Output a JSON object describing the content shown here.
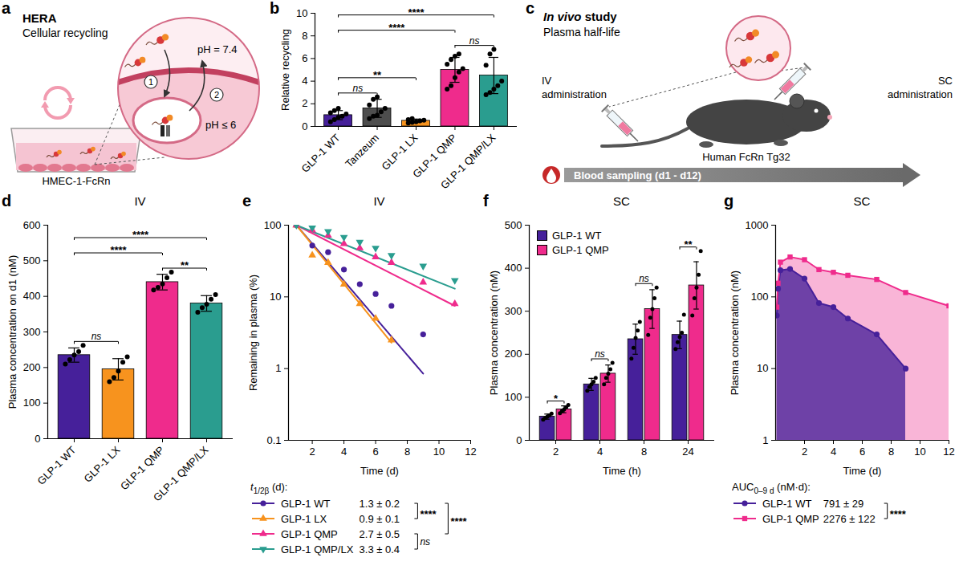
{
  "diagrams": [
    {
      "panel": "a",
      "type": "diagram",
      "title": "HERA",
      "subtitle": "Cellular recycling",
      "steps": [
        1,
        2
      ],
      "labels": {
        "outside": "pH = 7.4",
        "inside": "pH ≤ 6",
        "cells": "HMEC-1-FcRn"
      }
    },
    {
      "panel": "c",
      "type": "diagram",
      "title": "In vivo study",
      "subtitle": "Plasma half-life",
      "labels": {
        "iv": "IV administration",
        "sc": "SC administration",
        "mouse": "Human FcRn Tg32",
        "sampling": "Blood sampling (d1 - d12)"
      }
    }
  ],
  "chart_data": [
    {
      "panel": "b",
      "type": "bar",
      "y_label": "Relative recycling",
      "categories": [
        "GLP-1 WT",
        "Tanzeum",
        "GLP-1 LX",
        "GLP-1 QMP",
        "GLP-1 QMP/LX"
      ],
      "values": [
        1.0,
        1.6,
        0.5,
        5.0,
        4.5
      ],
      "errors": [
        0.4,
        0.8,
        0.15,
        1.1,
        1.6
      ],
      "colors": [
        "#46209a",
        "#4d4d4d",
        "#f7931e",
        "#ef2b8c",
        "#2a9d8f"
      ],
      "points": [
        [
          0.4,
          0.6,
          0.8,
          0.9,
          1.1,
          1.2,
          1.4,
          1.6
        ],
        [
          0.7,
          0.9,
          1.0,
          1.3,
          1.6,
          1.9,
          2.4,
          2.6
        ],
        [
          0.3,
          0.35,
          0.4,
          0.5,
          0.55,
          0.6,
          0.7
        ],
        [
          3.3,
          3.6,
          4.3,
          4.8,
          5.1,
          5.5,
          5.9,
          6.2,
          6.4
        ],
        [
          2.8,
          3.0,
          3.3,
          3.6,
          4.0,
          5.4,
          6.4,
          6.8
        ]
      ],
      "ylim": [
        0,
        10
      ],
      "yticks": [
        0,
        2,
        4,
        6,
        8,
        10
      ],
      "comparisons": [
        {
          "groups": [
            "GLP-1 WT",
            "Tanzeum"
          ],
          "label": "ns"
        },
        {
          "groups": [
            "GLP-1 WT",
            "GLP-1 LX"
          ],
          "label": "**"
        },
        {
          "groups": [
            "GLP-1 QMP",
            "GLP-1 QMP/LX"
          ],
          "label": "ns"
        },
        {
          "groups": [
            "GLP-1 WT",
            "GLP-1 QMP"
          ],
          "label": "****"
        },
        {
          "groups": [
            "GLP-1 WT",
            "GLP-1 QMP/LX"
          ],
          "label": "****"
        }
      ]
    },
    {
      "panel": "d",
      "type": "bar",
      "title": "IV",
      "y_label": "Plasma concentration on d1 (nM)",
      "categories": [
        "GLP-1 WT",
        "GLP-1 LX",
        "GLP-1 QMP",
        "GLP-1 QMP/LX"
      ],
      "values": [
        235,
        195,
        440,
        380
      ],
      "errors": [
        20,
        30,
        22,
        22
      ],
      "colors": [
        "#46209a",
        "#f7931e",
        "#ef2b8c",
        "#2a9d8f"
      ],
      "points": [
        [
          210,
          222,
          235,
          245,
          262
        ],
        [
          160,
          172,
          190,
          215,
          230
        ],
        [
          418,
          425,
          435,
          452,
          468
        ],
        [
          355,
          368,
          378,
          392,
          405
        ]
      ],
      "ylim": [
        0,
        600
      ],
      "yticks": [
        0,
        100,
        200,
        300,
        400,
        500,
        600
      ],
      "comparisons": [
        {
          "groups": [
            "GLP-1 WT",
            "GLP-1 LX"
          ],
          "label": "ns"
        },
        {
          "groups": [
            "GLP-1 QMP",
            "GLP-1 QMP/LX"
          ],
          "label": "**"
        },
        {
          "groups": [
            "GLP-1 WT",
            "GLP-1 QMP"
          ],
          "label": "****"
        },
        {
          "groups": [
            "GLP-1 WT",
            "GLP-1 QMP/LX"
          ],
          "label": "****"
        }
      ]
    },
    {
      "panel": "e",
      "type": "line",
      "title": "IV",
      "x_label": "Time (d)",
      "y_label": "Remaining in plasma (%)",
      "log": "y",
      "xlim": [
        0.5,
        12
      ],
      "xticks": [
        2,
        4,
        6,
        8,
        10,
        12
      ],
      "ylim": [
        0.1,
        100
      ],
      "yticks": [
        0.1,
        1,
        10,
        100
      ],
      "legend": "bottom",
      "legend_title": {
        "symbol": "t",
        "subscript": "1/2β",
        "text": "(d):"
      },
      "series": [
        {
          "name": "GLP-1 WT",
          "color": "#46209a",
          "marker": "circle",
          "x": [
            1,
            2,
            3,
            4,
            5,
            6,
            7,
            9
          ],
          "values": [
            100,
            52,
            42,
            24,
            15,
            11,
            7.5,
            3
          ],
          "fit_x": [
            1,
            9
          ],
          "fit_values": [
            100,
            0.85
          ],
          "half_life": 1.3,
          "half_life_sd": 0.2,
          "half_life_label": "1.3 ± 0.2"
        },
        {
          "name": "GLP-1 LX",
          "color": "#f7931e",
          "marker": "triangle",
          "x": [
            1,
            2,
            3,
            4,
            5,
            6,
            7
          ],
          "values": [
            100,
            38,
            30,
            15,
            8,
            5,
            2.5
          ],
          "fit_x": [
            1,
            7
          ],
          "fit_values": [
            100,
            2.3
          ],
          "half_life": 0.9,
          "half_life_sd": 0.1,
          "half_life_label": "0.9 ± 0.1"
        },
        {
          "name": "GLP-1 QMP",
          "color": "#ef2b8c",
          "marker": "triangle",
          "x": [
            1,
            2,
            3,
            4,
            5,
            6,
            7,
            9,
            11
          ],
          "values": [
            100,
            85,
            72,
            55,
            48,
            36,
            30,
            16,
            8
          ],
          "fit_x": [
            1,
            11
          ],
          "fit_values": [
            100,
            7.5
          ],
          "half_life": 2.7,
          "half_life_sd": 0.5,
          "half_life_label": "2.7 ± 0.5"
        },
        {
          "name": "GLP-1 QMP/LX",
          "color": "#2a9d8f",
          "marker": "triangle-down",
          "x": [
            1,
            2,
            3,
            4,
            5,
            6,
            7,
            9,
            11
          ],
          "values": [
            100,
            92,
            82,
            68,
            58,
            48,
            38,
            27,
            17
          ],
          "fit_x": [
            1,
            11
          ],
          "fit_values": [
            100,
            13
          ],
          "half_life": 3.3,
          "half_life_sd": 0.4,
          "half_life_label": "3.3 ± 0.4"
        }
      ],
      "legend_comparisons": [
        {
          "groups": [
            "GLP-1 WT",
            "GLP-1 LX"
          ],
          "label": "****"
        },
        {
          "groups": [
            "GLP-1 QMP",
            "GLP-1 QMP/LX"
          ],
          "label": "ns"
        },
        {
          "groups": [
            "GLP-1 WT",
            "GLP-1 QMP"
          ],
          "label": "****"
        }
      ]
    },
    {
      "panel": "f",
      "type": "bar",
      "title": "SC",
      "x_label": "Time (h)",
      "y_label": "Plasma concentration (nM)",
      "categories": [
        2,
        4,
        8,
        24
      ],
      "ylim": [
        0,
        500
      ],
      "yticks": [
        0,
        100,
        200,
        300,
        400,
        500
      ],
      "legend": "top-left",
      "series": [
        {
          "name": "GLP-1 WT",
          "color": "#46209a",
          "values": [
            55,
            130,
            235,
            245
          ],
          "errors": [
            6,
            14,
            35,
            32
          ],
          "points": [
            [
              48,
              52,
              55,
              58,
              62
            ],
            [
              115,
              124,
              130,
              136,
              145
            ],
            [
              190,
              215,
              238,
              255,
              275
            ],
            [
              212,
              228,
              240,
              250,
              292
            ]
          ]
        },
        {
          "name": "GLP-1 QMP",
          "color": "#ef2b8c",
          "values": [
            72,
            155,
            305,
            360
          ],
          "errors": [
            8,
            20,
            45,
            55
          ],
          "points": [
            [
              63,
              68,
              72,
              77,
              82
            ],
            [
              130,
              145,
              155,
              165,
              180
            ],
            [
              245,
              285,
              305,
              330,
              355
            ],
            [
              290,
              330,
              355,
              385,
              440
            ]
          ]
        }
      ],
      "significance": [
        "*",
        "ns",
        "ns",
        "**"
      ]
    },
    {
      "panel": "g",
      "type": "area",
      "title": "SC",
      "x_label": "Time (d)",
      "y_label": "Plasma concentration (nM)",
      "log": "y",
      "xlim": [
        0,
        12
      ],
      "xticks": [
        2,
        4,
        6,
        8,
        10,
        12
      ],
      "ylim": [
        1,
        1000
      ],
      "yticks": [
        1,
        10,
        100,
        1000
      ],
      "legend": "bottom",
      "legend_title": {
        "symbol": "AUC",
        "subscript": "0–9 d",
        "text": "(nM·d):"
      },
      "series": [
        {
          "name": "GLP-1 WT",
          "color": "#46209a",
          "marker": "circle",
          "x": [
            0.083,
            0.167,
            0.333,
            1,
            2,
            3,
            4,
            5,
            7,
            9
          ],
          "values": [
            55,
            130,
            235,
            245,
            180,
            82,
            72,
            50,
            30,
            10
          ],
          "auc": 791,
          "auc_sd": 29,
          "auc_label": "791 ± 29"
        },
        {
          "name": "GLP-1 QMP",
          "color": "#ef2b8c",
          "marker": "square",
          "x": [
            0.083,
            0.167,
            0.333,
            1,
            2,
            3,
            4,
            5,
            7,
            9,
            12
          ],
          "values": [
            72,
            155,
            305,
            360,
            330,
            240,
            220,
            200,
            175,
            115,
            75
          ],
          "auc": 2276,
          "auc_sd": 122,
          "auc_label": "2276 ± 122"
        }
      ],
      "legend_comparisons": [
        {
          "groups": [
            "GLP-1 WT",
            "GLP-1 QMP"
          ],
          "label": "****"
        }
      ]
    }
  ]
}
